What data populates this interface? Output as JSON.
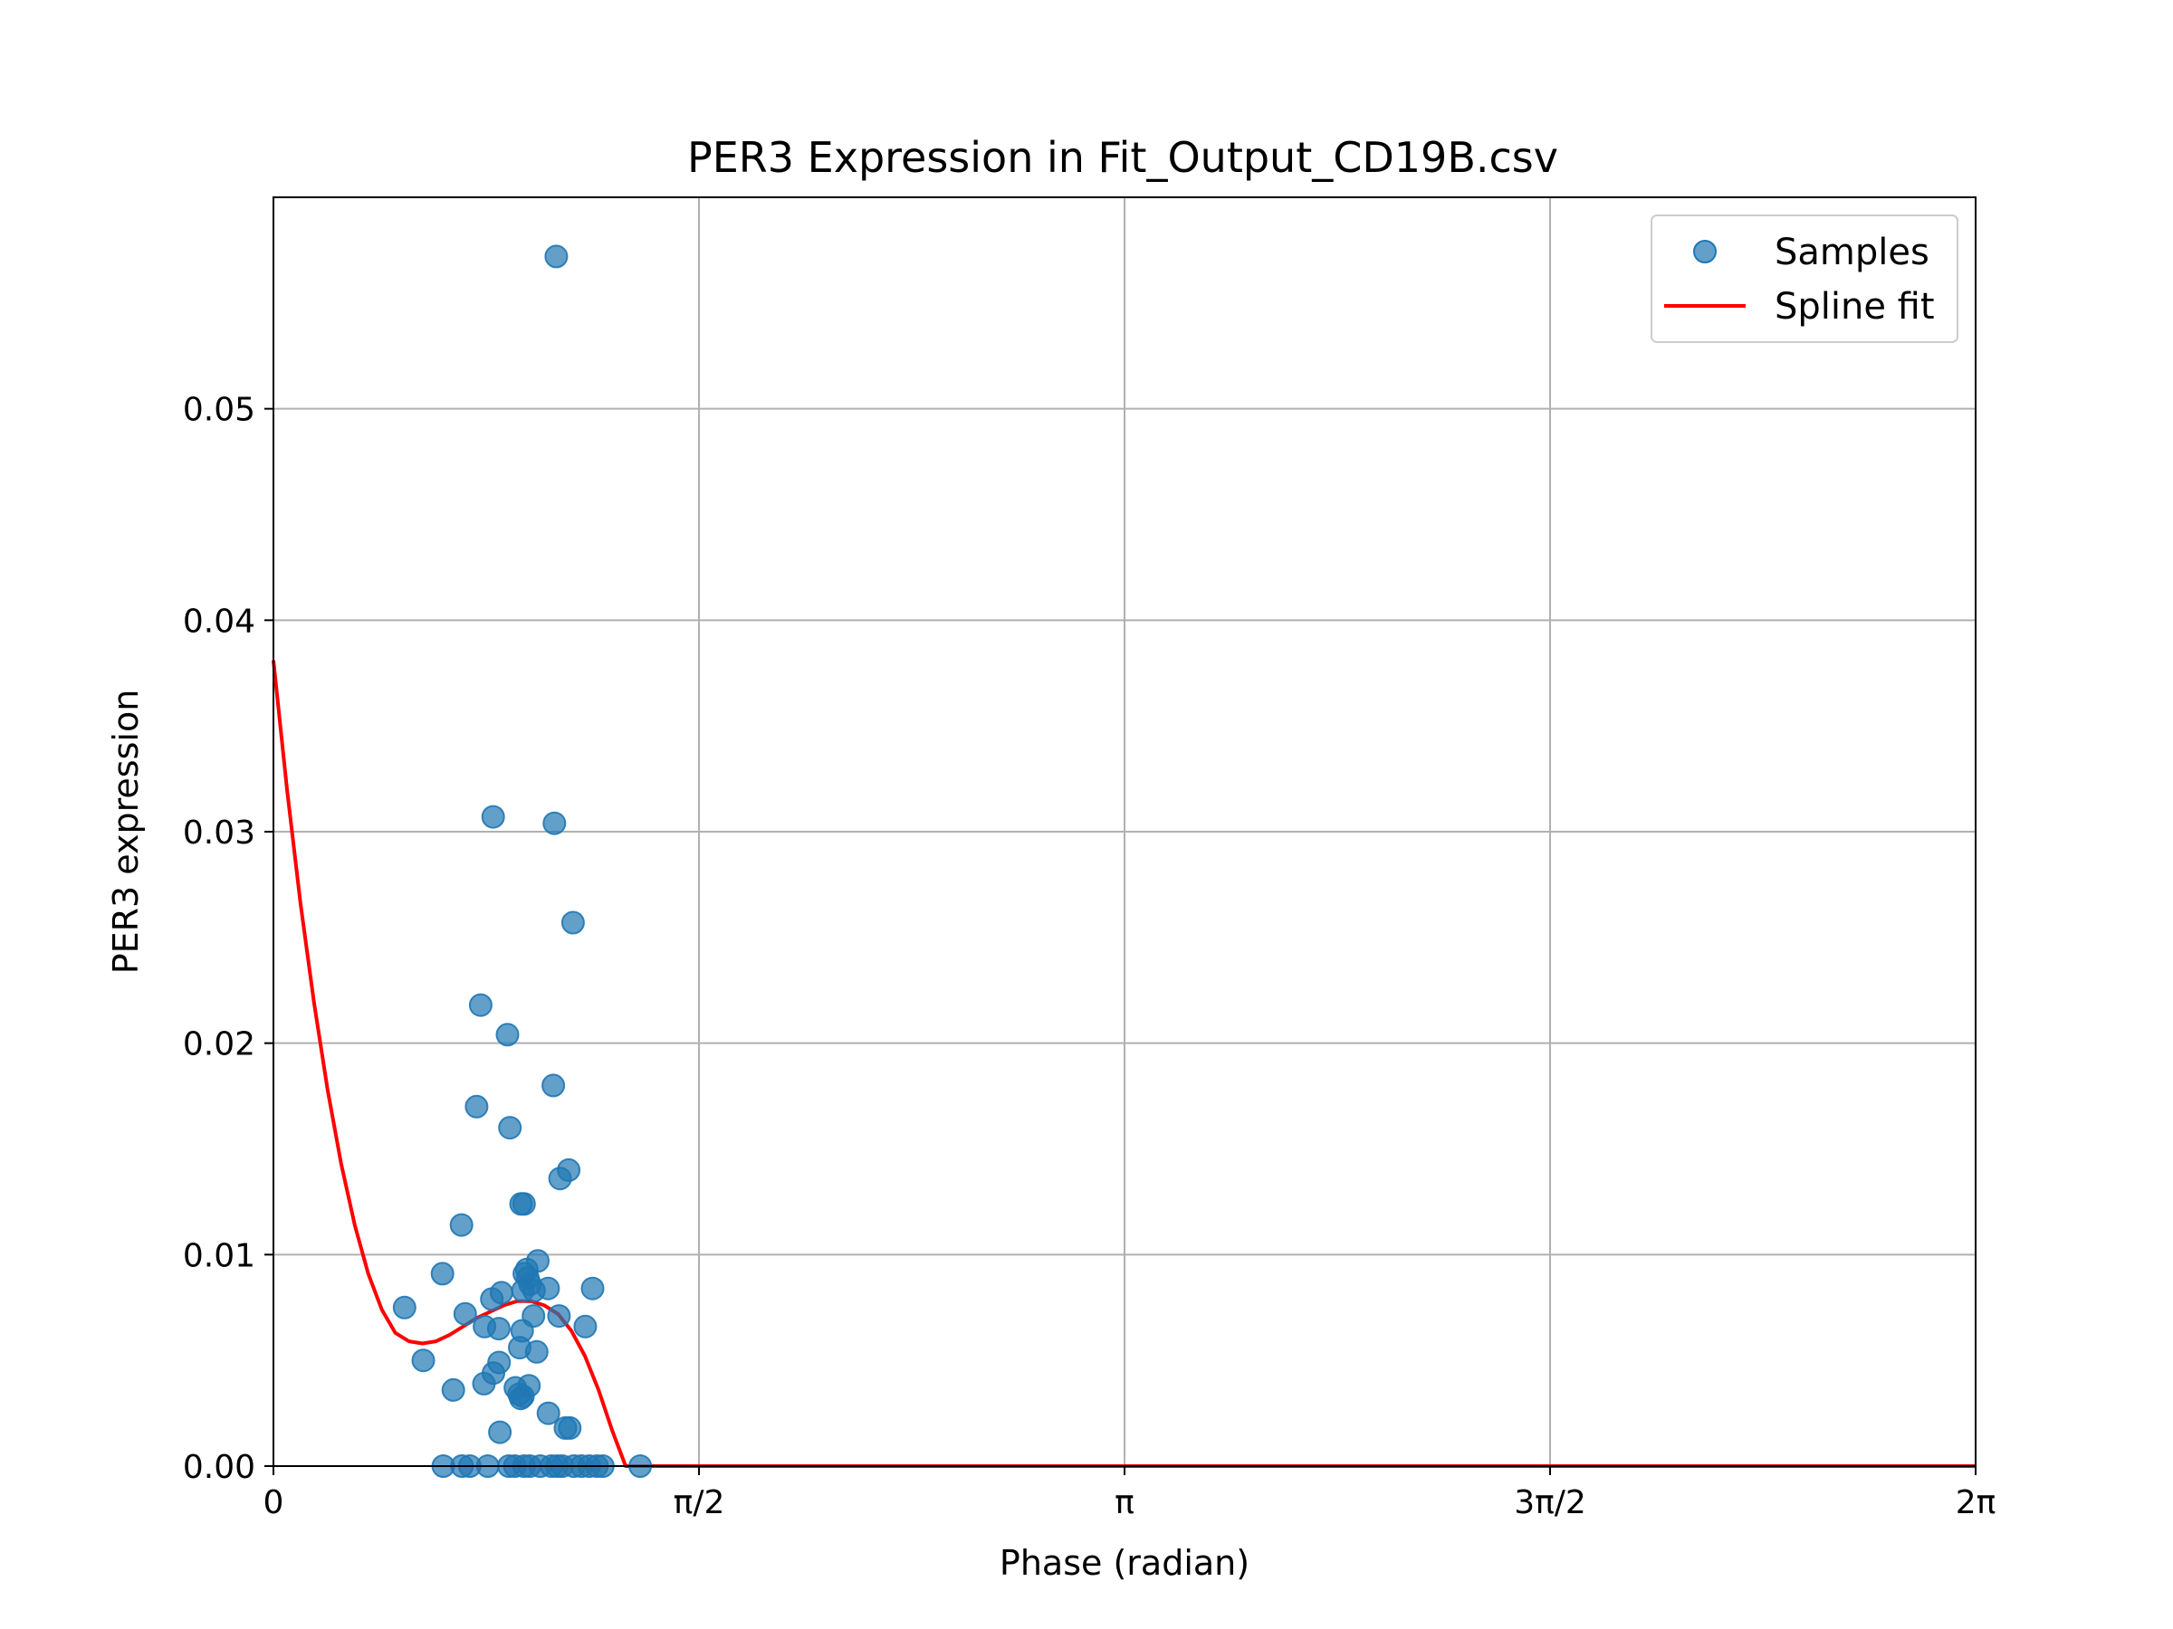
{
  "chart_data": {
    "type": "scatter",
    "title": "PER3 Expression in Fit_Output_CD19B.csv",
    "xlabel": "Phase (radian)",
    "ylabel": "PER3 expression",
    "xlim": [
      0,
      6.2832
    ],
    "ylim": [
      0,
      0.06
    ],
    "grid": true,
    "legend_position": "top-right",
    "x_ticks": [
      {
        "value": 0,
        "label": "0"
      },
      {
        "value": 1.5708,
        "label": "π/2"
      },
      {
        "value": 3.1416,
        "label": "π"
      },
      {
        "value": 4.7124,
        "label": "3π/2"
      },
      {
        "value": 6.2832,
        "label": "2π"
      }
    ],
    "y_ticks": [
      {
        "value": 0.0,
        "label": "0.00"
      },
      {
        "value": 0.01,
        "label": "0.01"
      },
      {
        "value": 0.02,
        "label": "0.02"
      },
      {
        "value": 0.03,
        "label": "0.03"
      },
      {
        "value": 0.04,
        "label": "0.04"
      },
      {
        "value": 0.05,
        "label": "0.05"
      }
    ],
    "series": [
      {
        "name": "Samples",
        "kind": "scatter",
        "color": "#1f77b4",
        "points": [
          [
            1.044,
            0.0572
          ],
          [
            0.811,
            0.0307
          ],
          [
            1.037,
            0.0304
          ],
          [
            1.106,
            0.0257
          ],
          [
            0.765,
            0.0218
          ],
          [
            0.864,
            0.0204
          ],
          [
            1.033,
            0.018
          ],
          [
            0.75,
            0.017
          ],
          [
            0.873,
            0.016
          ],
          [
            1.09,
            0.014
          ],
          [
            1.058,
            0.0136
          ],
          [
            0.914,
            0.0124
          ],
          [
            0.925,
            0.0124
          ],
          [
            0.694,
            0.0114
          ],
          [
            0.976,
            0.0097
          ],
          [
            0.935,
            0.0093
          ],
          [
            0.926,
            0.0091
          ],
          [
            0.624,
            0.0091
          ],
          [
            0.939,
            0.0089
          ],
          [
            0.947,
            0.0086
          ],
          [
            1.014,
            0.0084
          ],
          [
            1.178,
            0.0084
          ],
          [
            0.921,
            0.0083
          ],
          [
            0.962,
            0.0083
          ],
          [
            0.842,
            0.0082
          ],
          [
            0.806,
            0.0079
          ],
          [
            0.484,
            0.0075
          ],
          [
            0.708,
            0.0072
          ],
          [
            0.96,
            0.0071
          ],
          [
            1.054,
            0.0071
          ],
          [
            1.151,
            0.0066
          ],
          [
            0.779,
            0.0066
          ],
          [
            0.832,
            0.0065
          ],
          [
            0.918,
            0.0064
          ],
          [
            0.909,
            0.0056
          ],
          [
            0.972,
            0.0054
          ],
          [
            0.553,
            0.005
          ],
          [
            0.833,
            0.0049
          ],
          [
            0.812,
            0.0044
          ],
          [
            0.777,
            0.0039
          ],
          [
            0.893,
            0.0037
          ],
          [
            0.943,
            0.0038
          ],
          [
            0.664,
            0.0036
          ],
          [
            0.921,
            0.0033
          ],
          [
            0.907,
            0.0034
          ],
          [
            0.913,
            0.0032
          ],
          [
            1.015,
            0.0025
          ],
          [
            1.078,
            0.0018
          ],
          [
            1.094,
            0.0018
          ],
          [
            0.836,
            0.0016
          ],
          [
            0.627,
            0.0
          ],
          [
            0.696,
            0.0
          ],
          [
            0.725,
            0.0
          ],
          [
            0.791,
            0.0
          ],
          [
            0.869,
            0.0
          ],
          [
            0.891,
            0.0
          ],
          [
            0.925,
            0.0
          ],
          [
            0.946,
            0.0
          ],
          [
            0.985,
            0.0
          ],
          [
            1.026,
            0.0
          ],
          [
            1.047,
            0.0
          ],
          [
            1.066,
            0.0
          ],
          [
            1.109,
            0.0
          ],
          [
            1.137,
            0.0
          ],
          [
            1.166,
            0.0
          ],
          [
            1.194,
            0.0
          ],
          [
            1.216,
            0.0
          ],
          [
            1.354,
            0.0
          ]
        ]
      },
      {
        "name": "Spline fit",
        "kind": "line",
        "color": "#ff0000",
        "points": [
          [
            0.0,
            0.0381
          ],
          [
            0.05,
            0.032
          ],
          [
            0.1,
            0.0266
          ],
          [
            0.15,
            0.0219
          ],
          [
            0.2,
            0.0178
          ],
          [
            0.25,
            0.0143
          ],
          [
            0.3,
            0.0114
          ],
          [
            0.35,
            0.0091
          ],
          [
            0.4,
            0.0074
          ],
          [
            0.45,
            0.0063
          ],
          [
            0.5,
            0.0059
          ],
          [
            0.55,
            0.0058
          ],
          [
            0.6,
            0.0059
          ],
          [
            0.65,
            0.0062
          ],
          [
            0.7,
            0.0066
          ],
          [
            0.75,
            0.007
          ],
          [
            0.8,
            0.0073
          ],
          [
            0.85,
            0.0076
          ],
          [
            0.9,
            0.0078
          ],
          [
            0.95,
            0.0078
          ],
          [
            1.0,
            0.0076
          ],
          [
            1.05,
            0.0072
          ],
          [
            1.1,
            0.0064
          ],
          [
            1.15,
            0.0052
          ],
          [
            1.2,
            0.0036
          ],
          [
            1.25,
            0.0017
          ],
          [
            1.3,
            0.0
          ],
          [
            1.6,
            0.0
          ],
          [
            2.0,
            0.0
          ],
          [
            3.0,
            0.0
          ],
          [
            4.0,
            0.0
          ],
          [
            5.0,
            0.0
          ],
          [
            6.2832,
            0.0
          ]
        ]
      }
    ]
  }
}
